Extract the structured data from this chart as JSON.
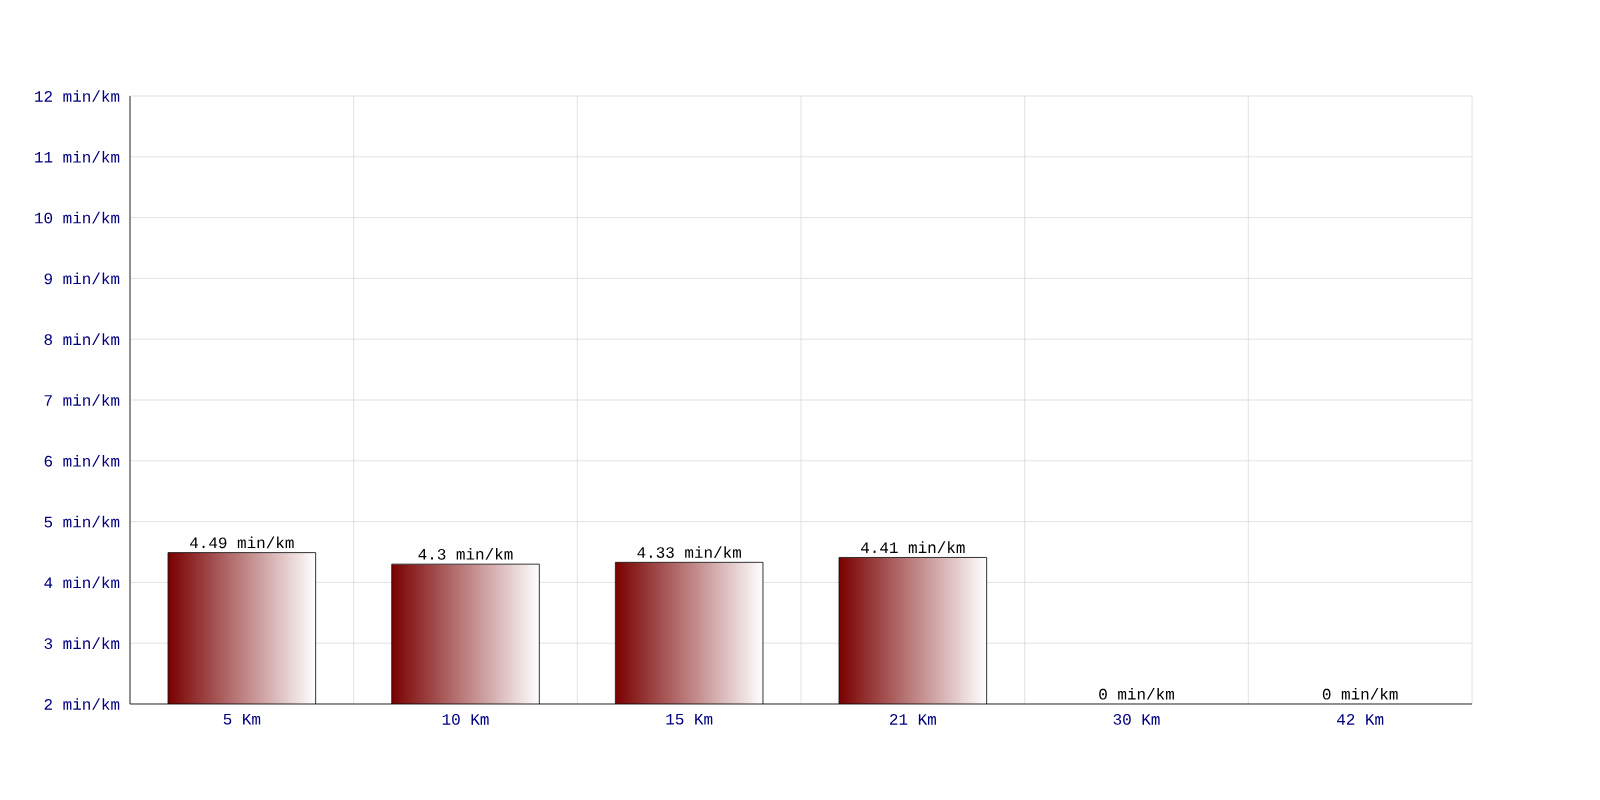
{
  "chart_data": {
    "type": "bar",
    "categories": [
      "5 Km",
      "10 Km",
      "15 Km",
      "21 Km",
      "30 Km",
      "42 Km"
    ],
    "values": [
      4.49,
      4.3,
      4.33,
      4.41,
      null,
      null
    ],
    "value_labels": [
      "4.49 min/km",
      "4.3 min/km",
      "4.33 min/km",
      "4.41 min/km",
      "0 min/km",
      "0 min/km"
    ],
    "color": "#7a0000",
    "ylim": [
      2,
      12
    ],
    "yticks": [
      {
        "value": 2,
        "label": "2 min/km"
      },
      {
        "value": 3,
        "label": "3 min/km"
      },
      {
        "value": 4,
        "label": "4 min/km"
      },
      {
        "value": 5,
        "label": "5 min/km"
      },
      {
        "value": 6,
        "label": "6 min/km"
      },
      {
        "value": 7,
        "label": "7 min/km"
      },
      {
        "value": 8,
        "label": "8 min/km"
      },
      {
        "value": 9,
        "label": "9 min/km"
      },
      {
        "value": 10,
        "label": "10 min/km"
      },
      {
        "value": 11,
        "label": "11 min/km"
      },
      {
        "value": 12,
        "label": "12 min/km"
      }
    ],
    "grid": true
  }
}
